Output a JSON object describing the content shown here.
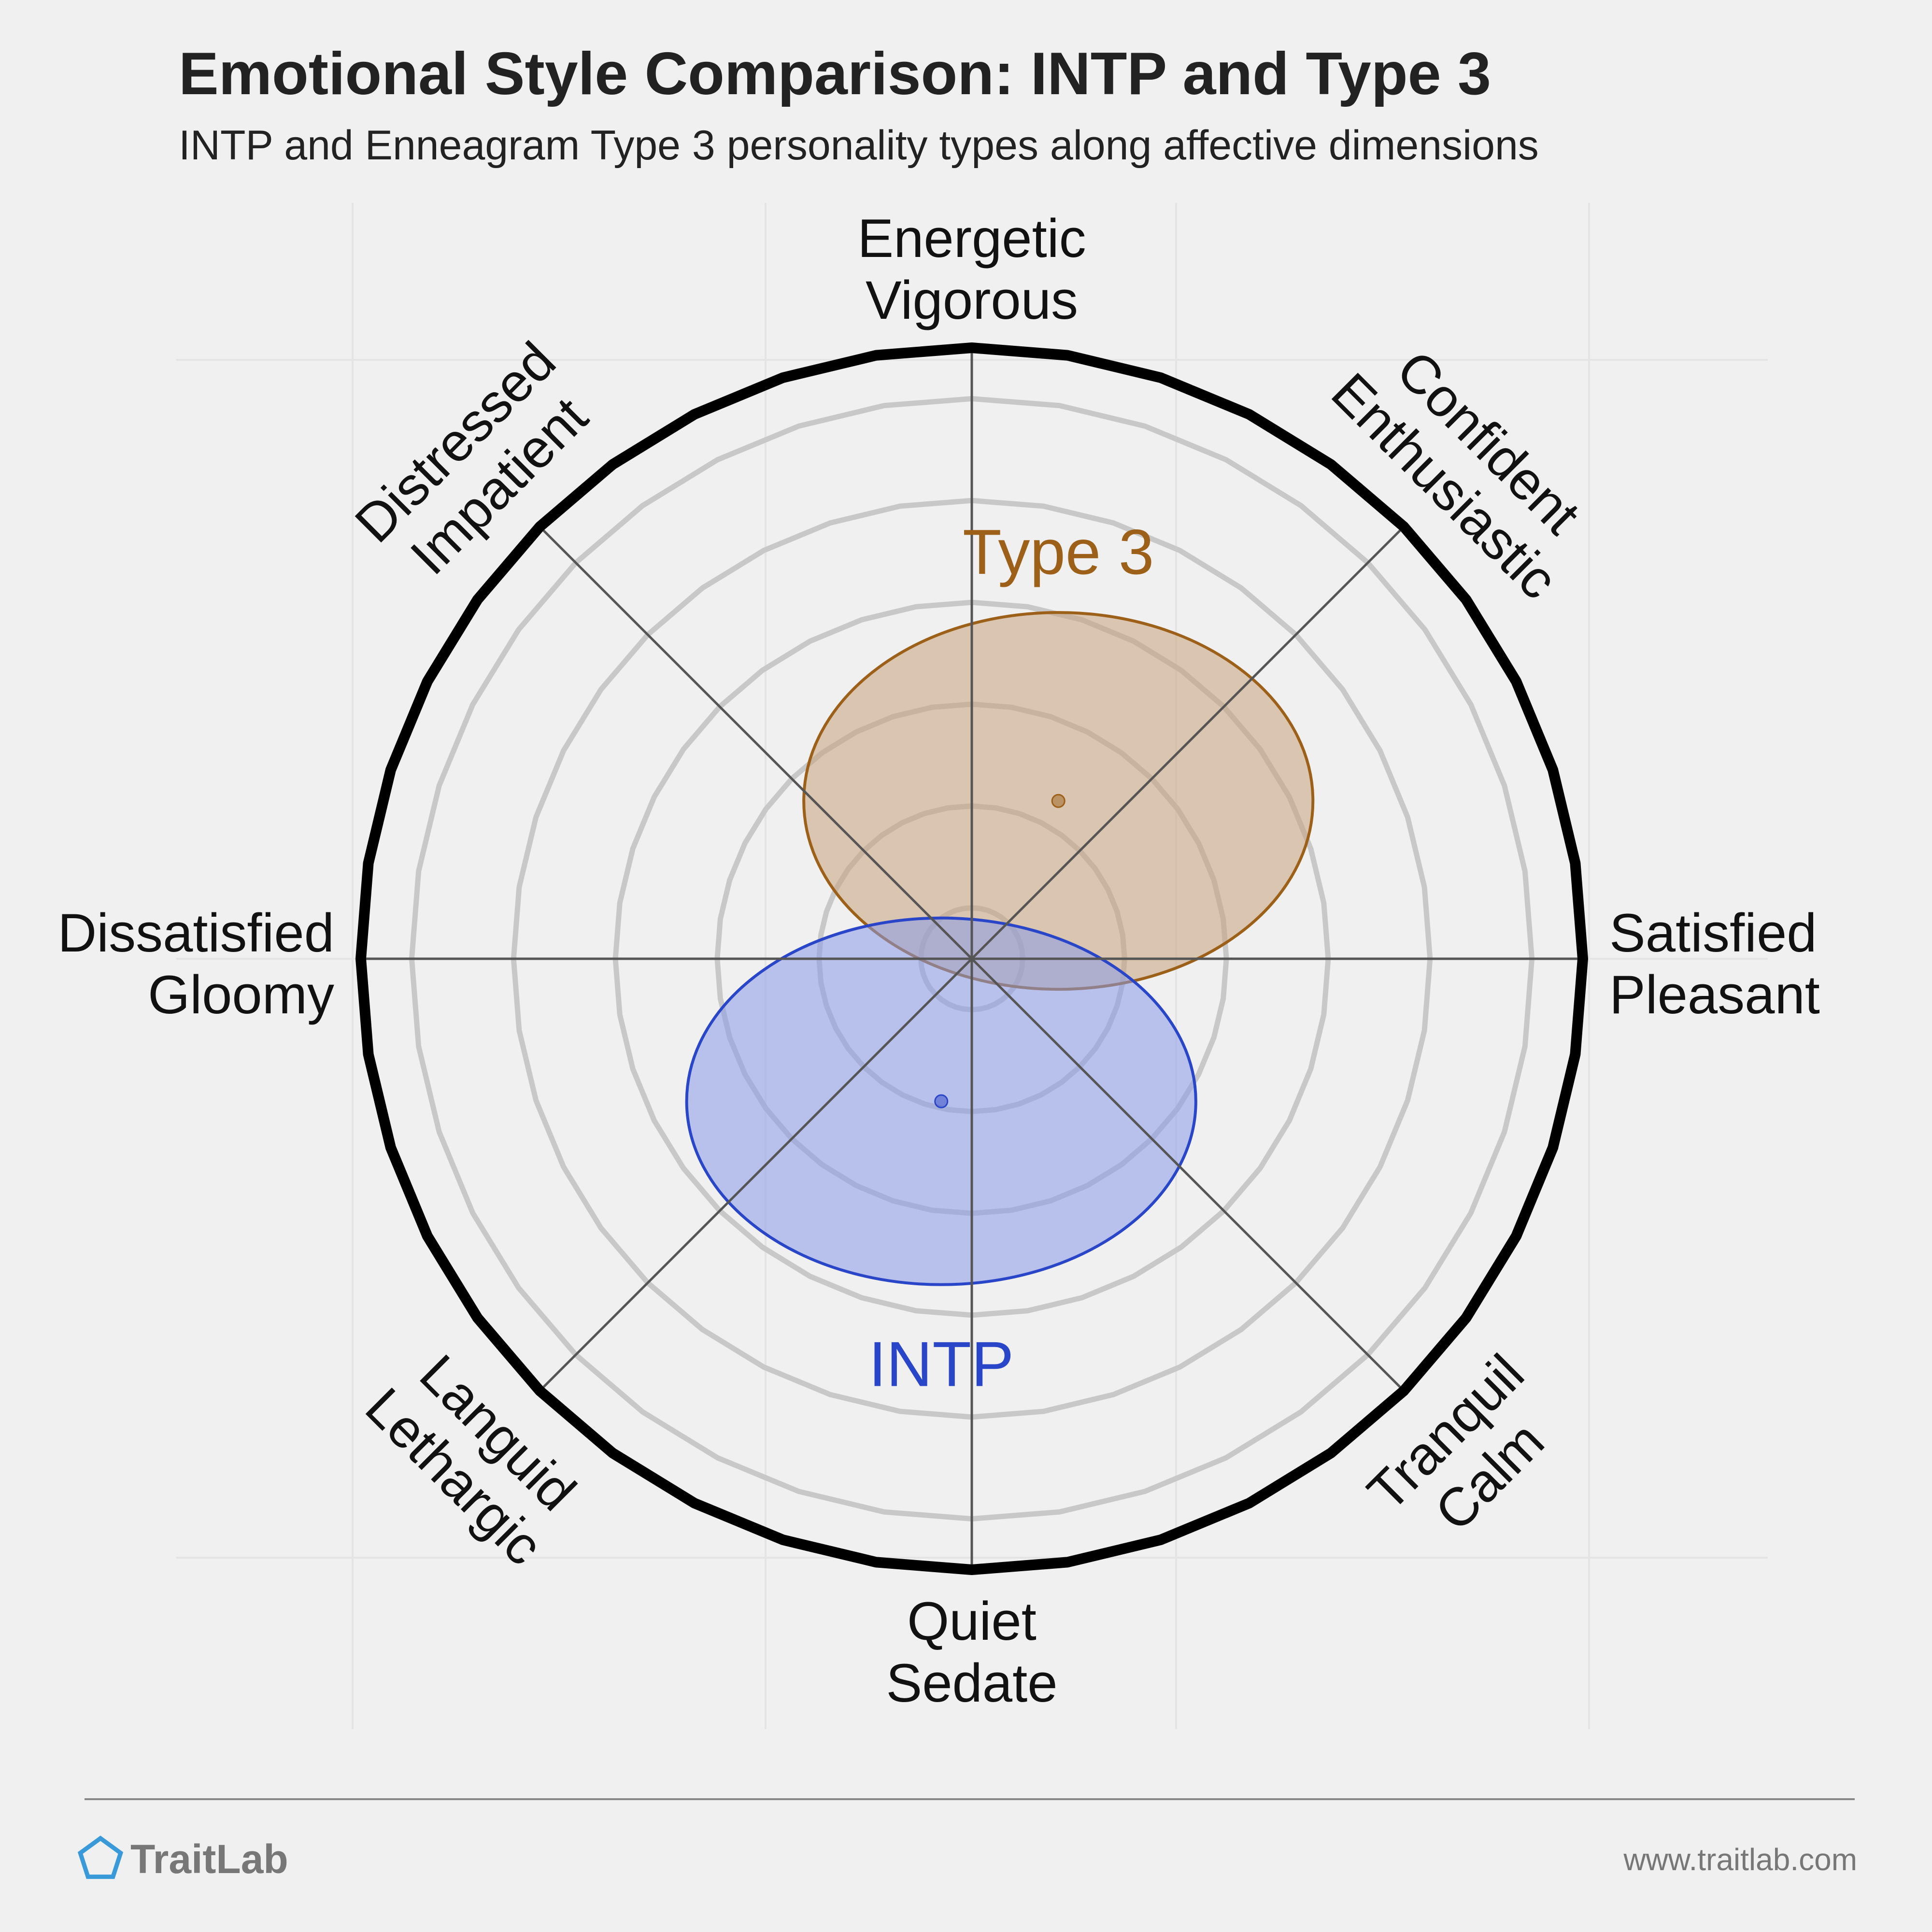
{
  "header": {
    "title": "Emotional Style Comparison: INTP and Type 3",
    "subtitle": "INTP and Enneagram Type 3 personality types along affective dimensions"
  },
  "footer": {
    "brand": "TraitLab",
    "url": "www.traitlab.com",
    "brand_icon": "pentagon-icon",
    "brand_color": "#3a9ad9"
  },
  "chart_data": {
    "type": "scatter",
    "title": "Emotional Style Comparison: INTP and Type 3",
    "subtitle": "INTP and Enneagram Type 3 personality types along affective dimensions",
    "x_range": [
      -6,
      6
    ],
    "y_range": [
      -6,
      6
    ],
    "rings": 6,
    "axes": [
      {
        "angle_deg": 90,
        "lines": [
          "Energetic",
          "Vigorous"
        ]
      },
      {
        "angle_deg": 45,
        "lines": [
          "Confident",
          "Enthusiastic"
        ]
      },
      {
        "angle_deg": 0,
        "lines": [
          "Satisfied",
          "Pleasant"
        ]
      },
      {
        "angle_deg": -45,
        "lines": [
          "Tranquil",
          "Calm"
        ]
      },
      {
        "angle_deg": -90,
        "lines": [
          "Quiet",
          "Sedate"
        ]
      },
      {
        "angle_deg": -135,
        "lines": [
          "Languid",
          "Lethargic"
        ]
      },
      {
        "angle_deg": 180,
        "lines": [
          "Dissatisfied",
          "Gloomy"
        ]
      },
      {
        "angle_deg": 135,
        "lines": [
          "Distressed",
          "Impatient"
        ]
      }
    ],
    "series": [
      {
        "name": "Type 3",
        "center": [
          0.85,
          1.55
        ],
        "spread": [
          2.5,
          1.85
        ],
        "color": "#9c6018",
        "fill": "#c7a27b"
      },
      {
        "name": "INTP",
        "center": [
          -0.3,
          -1.4
        ],
        "spread": [
          2.5,
          1.8
        ],
        "color": "#2a46c8",
        "fill": "#8b9be8"
      }
    ],
    "grid": true
  }
}
